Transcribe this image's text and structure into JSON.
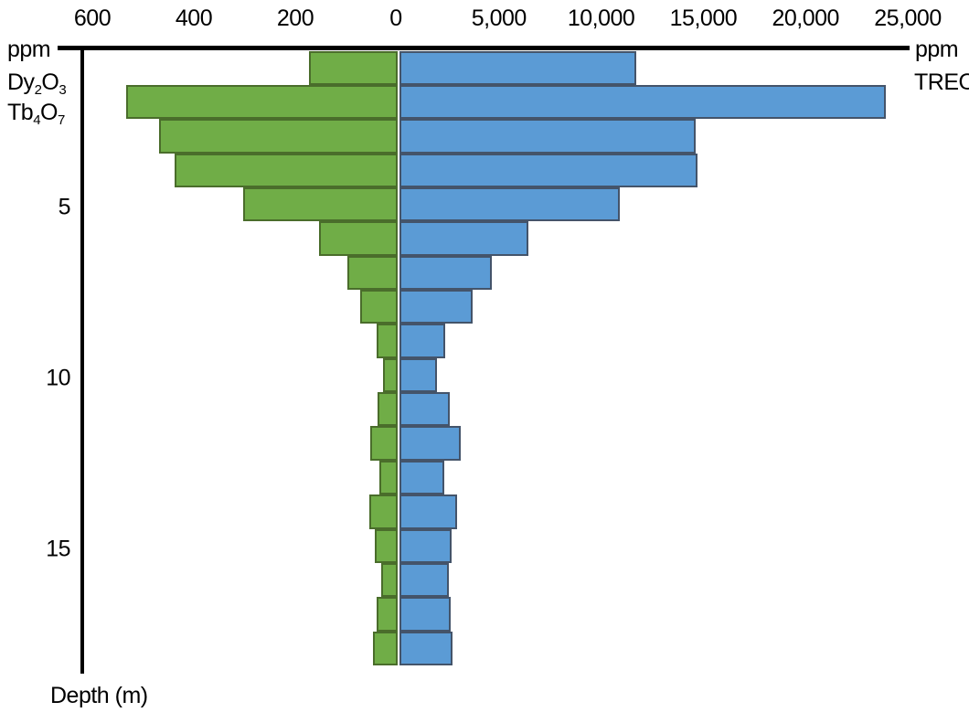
{
  "chart_data": {
    "type": "bar",
    "subtype": "mirrored-horizontal-depth-profile",
    "title": "",
    "depth_axis": {
      "label": "Depth (m)",
      "tick_values": [
        5,
        10,
        15
      ],
      "tick_labels": [
        "5",
        "10",
        "15"
      ],
      "row_depths": [
        1,
        2,
        3,
        4,
        5,
        6,
        7,
        8,
        9,
        10,
        11,
        12,
        13,
        14,
        15,
        16,
        17,
        18
      ]
    },
    "left_axis": {
      "unit": "ppm",
      "tick_values": [
        600,
        400,
        200
      ],
      "tick_labels": [
        "600",
        "400",
        "200"
      ],
      "max": 600,
      "direction": "increasing-leftward"
    },
    "right_axis": {
      "unit": "ppm",
      "tick_values": [
        5000,
        10000,
        15000,
        20000,
        25000
      ],
      "tick_labels": [
        "5,000",
        "10,000",
        "15,000",
        "20,000",
        "25,000"
      ],
      "max": 25000,
      "direction": "increasing-rightward"
    },
    "zero_tick_label": "0",
    "grid": false,
    "legend_position": "axis-ends",
    "series": [
      {
        "name": "Dy2O3 + Tb4O7",
        "side": "left",
        "unit": "ppm",
        "fill_color": "#70AD47",
        "border_color": "#4A6D2B",
        "values": [
          175,
          535,
          470,
          440,
          305,
          155,
          100,
          73,
          41,
          29,
          40,
          54,
          36,
          55,
          45,
          32,
          42,
          48
        ]
      },
      {
        "name": "TREO",
        "side": "right",
        "unit": "ppm",
        "fill_color": "#5B9BD5",
        "border_color": "#44546A",
        "values": [
          11600,
          23800,
          14500,
          14600,
          10800,
          6300,
          4500,
          3600,
          2250,
          1850,
          2450,
          3000,
          2200,
          2800,
          2550,
          2400,
          2500,
          2600
        ]
      }
    ]
  },
  "labels": {
    "left_unit": "ppm",
    "right_unit": "ppm",
    "treo": "TREO",
    "depth_title": "Depth (m)",
    "formulas": [
      {
        "parts": [
          {
            "t": "Dy"
          },
          {
            "t": "2",
            "sub": true
          },
          {
            "t": "O"
          },
          {
            "t": "3",
            "sub": true
          }
        ]
      },
      {
        "parts": [
          {
            "t": "Tb"
          },
          {
            "t": "4",
            "sub": true
          },
          {
            "t": "O"
          },
          {
            "t": "7",
            "sub": true
          }
        ]
      }
    ]
  }
}
